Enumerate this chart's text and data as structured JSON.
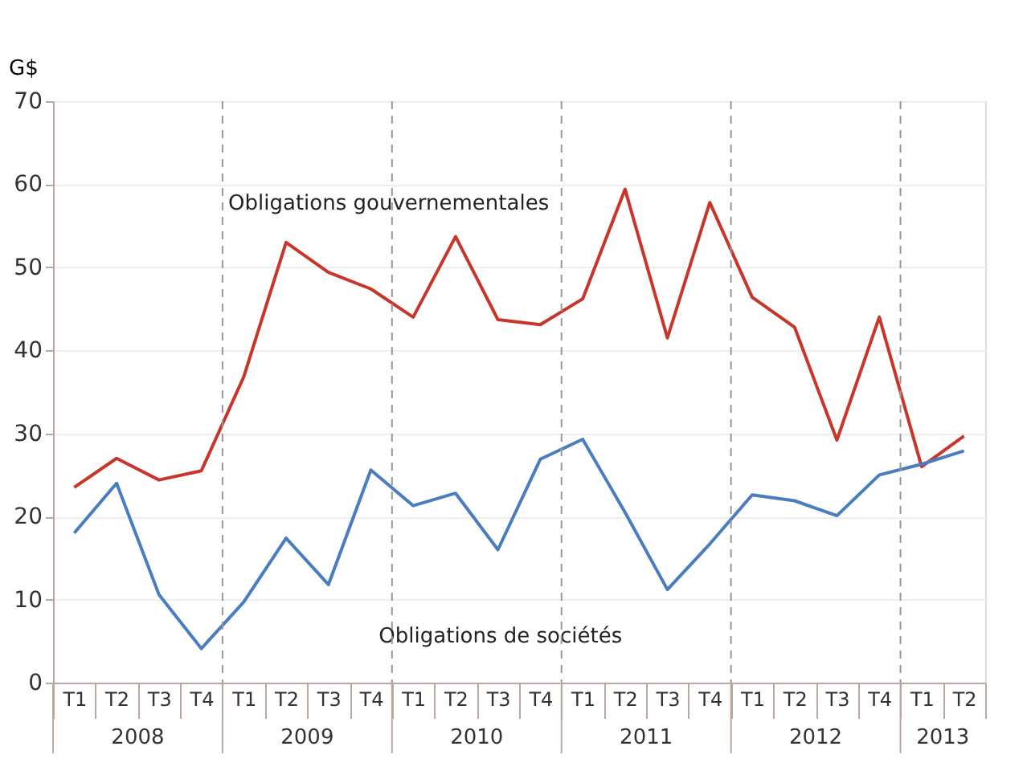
{
  "chart_data": {
    "type": "line",
    "ylabel": "G$",
    "categories": [
      "T1",
      "T2",
      "T3",
      "T4",
      "T1",
      "T2",
      "T3",
      "T4",
      "T1",
      "T2",
      "T3",
      "T4",
      "T1",
      "T2",
      "T3",
      "T4",
      "T1",
      "T2",
      "T3",
      "T4",
      "T1",
      "T2"
    ],
    "annotations": [
      "2008",
      "2009",
      "2010",
      "2011",
      "2012",
      "2013"
    ],
    "series": [
      {
        "name": "Obligations gouvernementales",
        "color": "#c8352b",
        "values": [
          23.5,
          27.0,
          24.4,
          25.5,
          36.8,
          53.0,
          49.4,
          47.4,
          44.0,
          53.7,
          43.7,
          43.1,
          46.2,
          59.4,
          41.5,
          57.8,
          46.4,
          42.8,
          29.2,
          44.0,
          26.0,
          29.7
        ]
      },
      {
        "name": "Obligations de sociétés",
        "color": "#4a7cc0",
        "values": [
          18.0,
          24.0,
          10.6,
          4.1,
          9.7,
          17.4,
          11.8,
          25.6,
          21.3,
          22.8,
          16.0,
          26.9,
          29.3,
          20.5,
          11.2,
          16.7,
          22.6,
          21.9,
          20.1,
          25.0,
          26.3,
          27.9
        ]
      }
    ],
    "ylim": [
      0,
      70
    ],
    "yticks": [
      0,
      10,
      20,
      30,
      40,
      50,
      60,
      70
    ],
    "grid": "y",
    "marker": "none",
    "line_style": "solid"
  }
}
